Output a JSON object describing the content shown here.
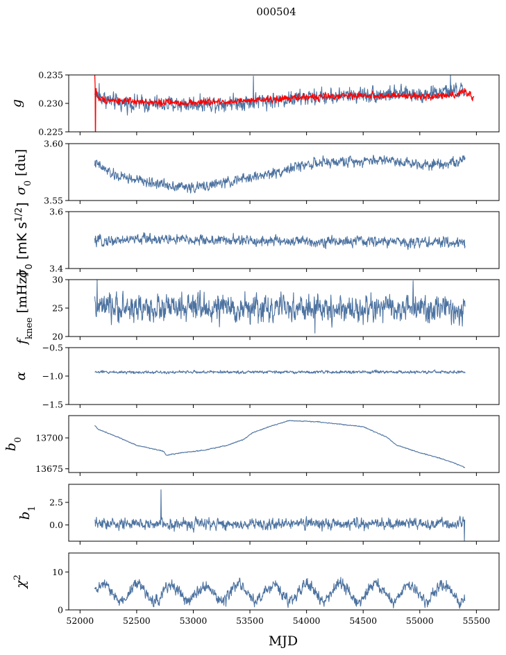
{
  "chart_data": {
    "type": "line",
    "title": "000504",
    "xlabel": "MJD",
    "xlim": [
      51900,
      55700
    ],
    "xticks": [
      52000,
      52500,
      53000,
      53500,
      54000,
      54500,
      55000,
      55500
    ],
    "colors": {
      "series": "#4c72a0",
      "highlight": "#ff0000"
    },
    "panels": [
      {
        "id": "g",
        "ylabel": "g",
        "ylim": [
          0.225,
          0.235
        ],
        "yticks": [
          0.225,
          0.23,
          0.235
        ],
        "ytick_labels": [
          "0.225",
          "0.230",
          "0.235"
        ],
        "series": [
          {
            "color": "#4c72a0",
            "x_range": [
              52130,
              55400
            ],
            "trend": [
              [
                52130,
                0.2315
              ],
              [
                52300,
                0.2302
              ],
              [
                52700,
                0.2298
              ],
              [
                53000,
                0.2299
              ],
              [
                53500,
                0.2303
              ],
              [
                54000,
                0.231
              ],
              [
                54500,
                0.2316
              ],
              [
                55000,
                0.2316
              ],
              [
                55400,
                0.2322
              ]
            ],
            "noise": 0.001,
            "spikes": [
              [
                52170,
                0.2335
              ],
              [
                53530,
                0.2348
              ],
              [
                55270,
                0.2351
              ]
            ]
          },
          {
            "color": "#ff0000",
            "x_range": [
              52130,
              55480
            ],
            "trend": [
              [
                52130,
                0.2335
              ],
              [
                52160,
                0.2308
              ],
              [
                52500,
                0.2302
              ],
              [
                53000,
                0.2301
              ],
              [
                53500,
                0.2304
              ],
              [
                54000,
                0.2311
              ],
              [
                54500,
                0.2314
              ],
              [
                55000,
                0.2312
              ],
              [
                55300,
                0.2315
              ],
              [
                55400,
                0.2322
              ],
              [
                55480,
                0.2308
              ]
            ],
            "noise": 0.0004,
            "spikes": [
              [
                52135,
                0.222
              ],
              [
                52128,
                0.235
              ]
            ]
          }
        ]
      },
      {
        "id": "sigma0",
        "ylabel": "σ0 [du]",
        "ylim": [
          3.55,
          3.6
        ],
        "yticks": [
          3.55,
          3.6
        ],
        "ytick_labels": [
          "3.55",
          "3.60"
        ],
        "series": [
          {
            "color": "#4c72a0",
            "x_range": [
              52130,
              55400
            ],
            "trend": [
              [
                52130,
                3.583
              ],
              [
                52300,
                3.572
              ],
              [
                52600,
                3.566
              ],
              [
                53000,
                3.561
              ],
              [
                53300,
                3.566
              ],
              [
                53700,
                3.574
              ],
              [
                54000,
                3.582
              ],
              [
                54300,
                3.584
              ],
              [
                54700,
                3.586
              ],
              [
                55000,
                3.582
              ],
              [
                55250,
                3.583
              ],
              [
                55400,
                3.585
              ]
            ],
            "noise": 0.0032,
            "spikes": []
          }
        ]
      },
      {
        "id": "sigma_mk",
        "ylabel": "σ0 [mK s^1/2]",
        "ylim": [
          3.4,
          3.6
        ],
        "yticks": [
          3.4,
          3.6
        ],
        "ytick_labels": [
          "3.4",
          "3.6"
        ],
        "series": [
          {
            "color": "#4c72a0",
            "x_range": [
              52130,
              55400
            ],
            "trend": [
              [
                52130,
                3.495
              ],
              [
                52600,
                3.505
              ],
              [
                53000,
                3.5
              ],
              [
                53500,
                3.498
              ],
              [
                54000,
                3.495
              ],
              [
                54500,
                3.495
              ],
              [
                55000,
                3.493
              ],
              [
                55400,
                3.49
              ]
            ],
            "noise": 0.013,
            "spikes": []
          }
        ]
      },
      {
        "id": "fknee",
        "ylabel": "fknee [mHz]",
        "ylim": [
          20,
          30
        ],
        "yticks": [
          20,
          25,
          30
        ],
        "ytick_labels": [
          "20",
          "25",
          "30"
        ],
        "series": [
          {
            "color": "#4c72a0",
            "x_range": [
              52130,
              55400
            ],
            "trend": [
              [
                52130,
                25.0
              ],
              [
                55400,
                24.8
              ]
            ],
            "noise": 1.7,
            "spikes": [
              [
                54075,
                20.6
              ],
              [
                52150,
                29.9
              ],
              [
                54940,
                29.8
              ]
            ]
          }
        ]
      },
      {
        "id": "alpha",
        "ylabel": "α",
        "ylim": [
          -1.5,
          -0.5
        ],
        "yticks": [
          -1.5,
          -1.0,
          -0.5
        ],
        "ytick_labels": [
          "−1.5",
          "−1.0",
          "−0.5"
        ],
        "series": [
          {
            "color": "#4c72a0",
            "x_range": [
              52130,
              55400
            ],
            "trend": [
              [
                52130,
                -0.93
              ],
              [
                55400,
                -0.93
              ]
            ],
            "noise": 0.018,
            "spikes": []
          }
        ]
      },
      {
        "id": "b0",
        "ylabel": "b0",
        "ylim": [
          13672,
          13718
        ],
        "yticks": [
          13675,
          13700
        ],
        "ytick_labels": [
          "13675",
          "13700"
        ],
        "series": [
          {
            "color": "#4c72a0",
            "x_range": [
              52130,
              55400
            ],
            "trend": [
              [
                52130,
                13710
              ],
              [
                52160,
                13707
              ],
              [
                52300,
                13702
              ],
              [
                52500,
                13694
              ],
              [
                52700,
                13690
              ],
              [
                52740,
                13689
              ],
              [
                52760,
                13686
              ],
              [
                52900,
                13688
              ],
              [
                53100,
                13690
              ],
              [
                53300,
                13694
              ],
              [
                53450,
                13699
              ],
              [
                53520,
                13704
              ],
              [
                53700,
                13710
              ],
              [
                53850,
                13714
              ],
              [
                54100,
                13713
              ],
              [
                54300,
                13711
              ],
              [
                54500,
                13709
              ],
              [
                54700,
                13701
              ],
              [
                54800,
                13694
              ],
              [
                55000,
                13688
              ],
              [
                55200,
                13683
              ],
              [
                55350,
                13678
              ],
              [
                55400,
                13676
              ]
            ],
            "noise": 0.25,
            "spikes": []
          }
        ]
      },
      {
        "id": "b1",
        "ylabel": "b1",
        "ylim": [
          -1.8,
          4.5
        ],
        "yticks": [
          0.0,
          2.5
        ],
        "ytick_labels": [
          "0.0",
          "2.5"
        ],
        "series": [
          {
            "color": "#4c72a0",
            "x_range": [
              52130,
              55400
            ],
            "trend": [
              [
                52130,
                0.1
              ],
              [
                55400,
                0.1
              ]
            ],
            "noise": 0.45,
            "spikes": [
              [
                52715,
                3.9
              ],
              [
                55395,
                -1.8
              ]
            ]
          }
        ]
      },
      {
        "id": "chi2",
        "ylabel": "χ2",
        "ylim": [
          0,
          15
        ],
        "yticks": [
          0,
          10
        ],
        "ytick_labels": [
          "0",
          "10"
        ],
        "series": [
          {
            "color": "#4c72a0",
            "x_range": [
              52130,
              55400
            ],
            "trend": [
              [
                52130,
                4.5
              ],
              [
                55400,
                4.5
              ]
            ],
            "wave": {
              "amplitude": 2.2,
              "period": 300
            },
            "noise": 1.1,
            "spikes": []
          }
        ]
      }
    ]
  }
}
